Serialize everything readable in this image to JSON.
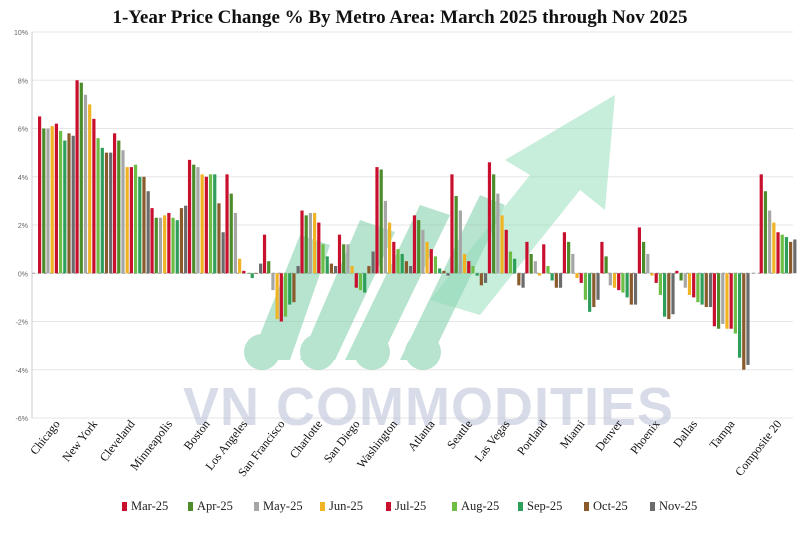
{
  "chart_data": {
    "type": "bar",
    "title": "1-Year Price Change % By Metro Area: March 2025 through Nov 2025",
    "xlabel": "",
    "ylabel": "",
    "ylim": [
      -6,
      10
    ],
    "yticks": [
      "10%",
      "8%",
      "6%",
      "4%",
      "2%",
      "0%",
      "-2%",
      "-4%",
      "-6%"
    ],
    "grid": true,
    "legend_position": "bottom",
    "categories": [
      "Chicago",
      "New York",
      "Cleveland",
      "Minneapolis",
      "Boston",
      "Los Angeles",
      "San Francisco",
      "Charlotte",
      "San Diego",
      "Washington",
      "Atlanta",
      "Seattle",
      "Las Vegas",
      "Portland",
      "Miami",
      "Denver",
      "Phoenix",
      "Dallas",
      "Tampa",
      "Composite 20"
    ],
    "series": [
      {
        "name": "Mar-25",
        "color": "#c8102e",
        "values": [
          6.5,
          8.0,
          5.8,
          2.7,
          4.7,
          4.1,
          1.6,
          2.6,
          1.6,
          4.4,
          2.4,
          4.1,
          4.6,
          1.3,
          1.7,
          1.3,
          1.9,
          0.1,
          -2.2,
          4.1
        ]
      },
      {
        "name": "Apr-25",
        "color": "#4c8c2b",
        "values": [
          6.0,
          7.9,
          5.5,
          2.3,
          4.5,
          3.3,
          0.5,
          2.4,
          1.2,
          4.3,
          2.2,
          3.2,
          4.1,
          0.8,
          1.3,
          0.7,
          1.3,
          -0.3,
          -2.3,
          3.4
        ]
      },
      {
        "name": "May-25",
        "color": "#a6a6a6",
        "values": [
          6.0,
          7.4,
          5.1,
          2.3,
          4.4,
          2.5,
          -0.7,
          2.5,
          1.2,
          3.0,
          1.8,
          2.6,
          3.3,
          0.5,
          0.8,
          -0.5,
          0.8,
          -0.6,
          -2.1,
          2.6
        ]
      },
      {
        "name": "Jun-25",
        "color": "#f0b323",
        "values": [
          6.1,
          7.0,
          4.4,
          2.4,
          4.1,
          0.6,
          -1.9,
          2.5,
          0.3,
          2.1,
          1.3,
          0.8,
          2.4,
          -0.1,
          -0.2,
          -0.6,
          -0.1,
          -0.9,
          -2.3,
          2.1
        ]
      },
      {
        "name": "Jul-25",
        "color": "#c8102e",
        "values": [
          6.2,
          6.4,
          4.4,
          2.5,
          4.0,
          0.1,
          -2.0,
          2.1,
          -0.6,
          1.3,
          1.0,
          0.5,
          1.8,
          1.2,
          -0.4,
          -0.7,
          -0.4,
          -1.0,
          -2.3,
          1.7
        ]
      },
      {
        "name": "Aug-25",
        "color": "#6cbe45",
        "values": [
          5.9,
          5.6,
          4.5,
          2.3,
          4.1,
          0.0,
          -1.8,
          1.2,
          -0.7,
          1.0,
          0.7,
          0.3,
          0.9,
          0.3,
          -1.1,
          -0.8,
          -0.9,
          -1.2,
          -2.5,
          1.6
        ]
      },
      {
        "name": "Sep-25",
        "color": "#2e9e5b",
        "values": [
          5.5,
          5.2,
          4.0,
          2.2,
          4.1,
          -0.2,
          -1.3,
          0.7,
          -0.8,
          0.8,
          0.2,
          -0.1,
          0.6,
          -0.3,
          -1.6,
          -1.0,
          -1.8,
          -1.3,
          -3.5,
          1.5
        ]
      },
      {
        "name": "Oct-25",
        "color": "#8b5a2b",
        "values": [
          5.8,
          5.0,
          4.0,
          2.7,
          2.9,
          0.0,
          -1.2,
          0.4,
          0.3,
          0.5,
          0.1,
          -0.5,
          -0.5,
          -0.6,
          -1.4,
          -1.3,
          -1.9,
          -1.4,
          -4.0,
          1.3
        ]
      },
      {
        "name": "Nov-25",
        "color": "#6b6b6b",
        "values": [
          5.7,
          5.0,
          3.4,
          2.8,
          1.7,
          0.4,
          0.3,
          0.3,
          0.9,
          0.3,
          -0.1,
          -0.4,
          -0.6,
          -0.6,
          -1.1,
          -1.3,
          -1.7,
          -1.4,
          -3.8,
          1.4
        ]
      }
    ]
  },
  "watermark": {
    "text": "VN COMMODITIES",
    "logo_color": "#7dcfa7",
    "arrow_color": "#8fdcb8",
    "text_color": "#b9bfd6"
  }
}
